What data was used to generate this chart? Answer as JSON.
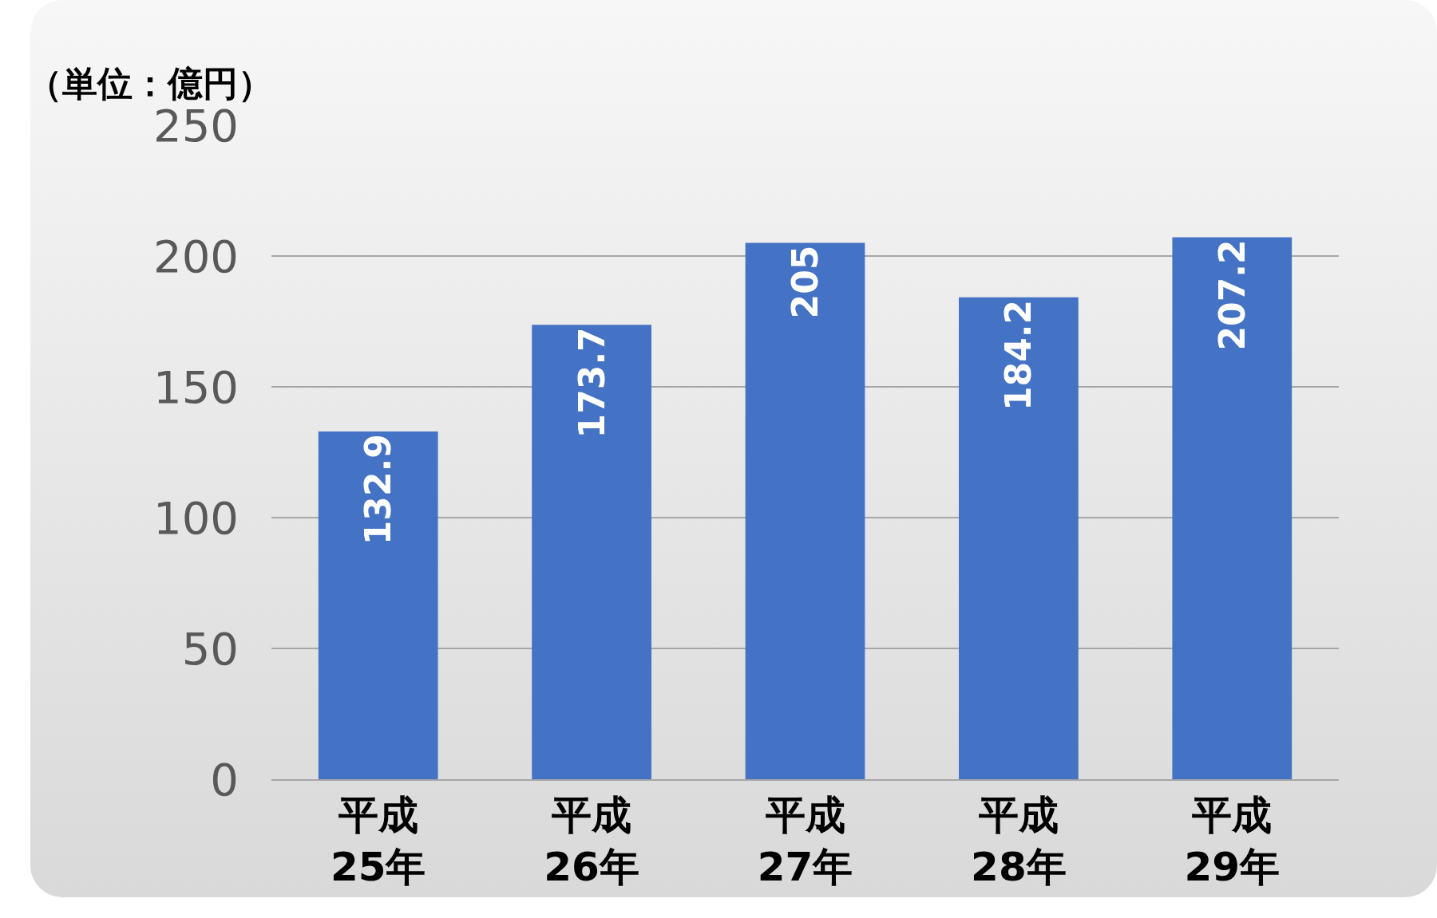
{
  "chart_data": {
    "type": "bar",
    "ylabel": "（単位：億円）",
    "categories": [
      "平成\n25年",
      "平成\n26年",
      "平成\n27年",
      "平成\n28年",
      "平成\n29年"
    ],
    "values": [
      132.9,
      173.7,
      205,
      184.2,
      207.2
    ],
    "color": "#4472c4",
    "ylim": [
      0,
      250
    ],
    "yticks": [
      0,
      50,
      100,
      150,
      200,
      250
    ],
    "grid": "y",
    "data_labels": true
  }
}
